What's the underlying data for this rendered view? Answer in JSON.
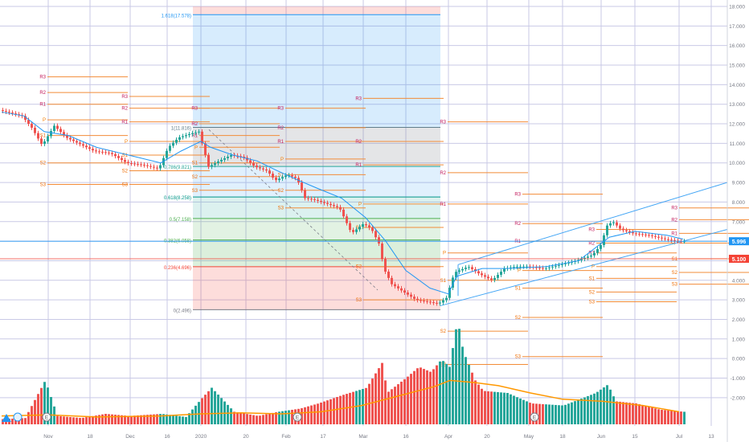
{
  "chart_data": {
    "type": "candlestick",
    "y_axis": {
      "min": -2.5,
      "max": 18,
      "tick_values": [
        18,
        17,
        16,
        15,
        14,
        13,
        12,
        11,
        10,
        9,
        8,
        7,
        6,
        5,
        4,
        3,
        2,
        1,
        0,
        -1,
        -2
      ],
      "tick_labels": [
        "18.000",
        "17.000",
        "16.000",
        "15.000",
        "14.000",
        "13.000",
        "12.000",
        "11.000",
        "10.000",
        "9.000",
        "8.000",
        "7.000",
        "6.000",
        "5.000",
        "4.000",
        "3.000",
        "2.000",
        "1.000",
        "0.000",
        "-1.000",
        "-2.000"
      ]
    },
    "x_axis": {
      "range": [
        0,
        890
      ],
      "tick_labels": [
        {
          "text": "Nov",
          "x": 60
        },
        {
          "text": "18",
          "x": 112
        },
        {
          "text": "Dec",
          "x": 162
        },
        {
          "text": "16",
          "x": 208
        },
        {
          "text": "2020",
          "x": 250
        },
        {
          "text": "20",
          "x": 306
        },
        {
          "text": "Feb",
          "x": 356
        },
        {
          "text": "17",
          "x": 402
        },
        {
          "text": "Mar",
          "x": 452
        },
        {
          "text": "16",
          "x": 505
        },
        {
          "text": "Apr",
          "x": 558
        },
        {
          "text": "20",
          "x": 606
        },
        {
          "text": "May",
          "x": 658
        },
        {
          "text": "18",
          "x": 700
        },
        {
          "text": "Jun",
          "x": 748
        },
        {
          "text": "15",
          "x": 790
        },
        {
          "text": "Jul",
          "x": 845
        },
        {
          "text": "13",
          "x": 885
        }
      ]
    },
    "price_markers": [
      {
        "value": 5.996,
        "label": "5.996",
        "color": "#2196f3"
      },
      {
        "value": 5.1,
        "label": "5.100",
        "color": "#f44336"
      }
    ],
    "candles_keypoints": [
      [
        2,
        12.7
      ],
      [
        30,
        12.4
      ],
      [
        42,
        11.8
      ],
      [
        55,
        10.9
      ],
      [
        70,
        11.9
      ],
      [
        85,
        11.3
      ],
      [
        100,
        11.0
      ],
      [
        120,
        10.6
      ],
      [
        140,
        10.5
      ],
      [
        160,
        10.0
      ],
      [
        180,
        9.9
      ],
      [
        200,
        9.7
      ],
      [
        212,
        10.8
      ],
      [
        225,
        11.3
      ],
      [
        240,
        11.5
      ],
      [
        250,
        11.6
      ],
      [
        262,
        9.8
      ],
      [
        275,
        10.1
      ],
      [
        290,
        10.4
      ],
      [
        305,
        10.3
      ],
      [
        320,
        9.8
      ],
      [
        335,
        9.6
      ],
      [
        345,
        9.1
      ],
      [
        360,
        9.4
      ],
      [
        372,
        9.2
      ],
      [
        382,
        8.2
      ],
      [
        395,
        8.1
      ],
      [
        410,
        7.9
      ],
      [
        425,
        7.7
      ],
      [
        440,
        6.4
      ],
      [
        455,
        6.9
      ],
      [
        465,
        6.6
      ],
      [
        475,
        5.8
      ],
      [
        480,
        4.6
      ],
      [
        490,
        3.8
      ],
      [
        505,
        3.4
      ],
      [
        520,
        3.0
      ],
      [
        535,
        2.9
      ],
      [
        548,
        2.8
      ],
      [
        558,
        3.1
      ],
      [
        568,
        4.4
      ],
      [
        585,
        4.7
      ],
      [
        600,
        4.3
      ],
      [
        615,
        4.0
      ],
      [
        630,
        4.6
      ],
      [
        645,
        4.7
      ],
      [
        660,
        4.7
      ],
      [
        680,
        4.6
      ],
      [
        700,
        4.8
      ],
      [
        720,
        5.0
      ],
      [
        740,
        5.3
      ],
      [
        750,
        5.8
      ],
      [
        758,
        6.8
      ],
      [
        765,
        7.0
      ],
      [
        775,
        6.6
      ],
      [
        790,
        6.4
      ],
      [
        810,
        6.3
      ],
      [
        830,
        6.1
      ],
      [
        845,
        6.0
      ],
      [
        850,
        5.996
      ]
    ],
    "ma_keypoints": [
      [
        2,
        12.6
      ],
      [
        30,
        12.4
      ],
      [
        55,
        11.6
      ],
      [
        85,
        11.4
      ],
      [
        120,
        10.8
      ],
      [
        160,
        10.4
      ],
      [
        200,
        10.0
      ],
      [
        225,
        10.6
      ],
      [
        250,
        11.1
      ],
      [
        262,
        10.8
      ],
      [
        290,
        10.4
      ],
      [
        320,
        10.1
      ],
      [
        345,
        9.6
      ],
      [
        372,
        9.1
      ],
      [
        395,
        8.7
      ],
      [
        425,
        8.2
      ],
      [
        455,
        7.2
      ],
      [
        480,
        6.0
      ],
      [
        505,
        4.5
      ],
      [
        535,
        3.6
      ],
      [
        558,
        3.3
      ],
      [
        568,
        4.2
      ],
      [
        600,
        4.6
      ],
      [
        630,
        4.6
      ],
      [
        680,
        4.7
      ],
      [
        720,
        5.0
      ],
      [
        758,
        6.2
      ],
      [
        790,
        6.5
      ],
      [
        830,
        6.3
      ],
      [
        850,
        6.1
      ]
    ],
    "volume_keypoints": [
      [
        2,
        0.05
      ],
      [
        30,
        0.06
      ],
      [
        55,
        0.42
      ],
      [
        70,
        0.08
      ],
      [
        100,
        0.06
      ],
      [
        130,
        0.1
      ],
      [
        160,
        0.08
      ],
      [
        200,
        0.1
      ],
      [
        230,
        0.07
      ],
      [
        250,
        0.25
      ],
      [
        262,
        0.35
      ],
      [
        290,
        0.12
      ],
      [
        320,
        0.08
      ],
      [
        345,
        0.12
      ],
      [
        372,
        0.15
      ],
      [
        395,
        0.2
      ],
      [
        425,
        0.28
      ],
      [
        455,
        0.35
      ],
      [
        475,
        0.6
      ],
      [
        480,
        0.3
      ],
      [
        505,
        0.45
      ],
      [
        520,
        0.55
      ],
      [
        535,
        0.5
      ],
      [
        548,
        0.62
      ],
      [
        558,
        0.55
      ],
      [
        568,
        1.0
      ],
      [
        575,
        0.7
      ],
      [
        590,
        0.42
      ],
      [
        600,
        0.32
      ],
      [
        630,
        0.3
      ],
      [
        660,
        0.2
      ],
      [
        700,
        0.18
      ],
      [
        740,
        0.3
      ],
      [
        755,
        0.38
      ],
      [
        765,
        0.22
      ],
      [
        790,
        0.2
      ],
      [
        820,
        0.14
      ],
      [
        850,
        0.12
      ]
    ],
    "volume_ma_keypoints": [
      [
        2,
        0.08
      ],
      [
        60,
        0.09
      ],
      [
        120,
        0.07
      ],
      [
        200,
        0.08
      ],
      [
        250,
        0.1
      ],
      [
        300,
        0.11
      ],
      [
        350,
        0.1
      ],
      [
        400,
        0.12
      ],
      [
        450,
        0.18
      ],
      [
        500,
        0.28
      ],
      [
        540,
        0.36
      ],
      [
        560,
        0.42
      ],
      [
        590,
        0.4
      ],
      [
        620,
        0.37
      ],
      [
        660,
        0.3
      ],
      [
        700,
        0.24
      ],
      [
        750,
        0.22
      ],
      [
        800,
        0.18
      ],
      [
        845,
        0.12
      ]
    ],
    "fib_retracement": {
      "x_range": [
        240,
        548
      ],
      "levels": [
        {
          "label": "1.618(17.578)",
          "value": 17.578,
          "color": "#2196f3"
        },
        {
          "label": "1(11.816)",
          "value": 11.816,
          "color": "#607d8b"
        },
        {
          "label": "0.786(9.821)",
          "value": 9.821,
          "color": "#26a69a"
        },
        {
          "label": "0.618(8.258)",
          "value": 8.258,
          "color": "#009688"
        },
        {
          "label": "0.5(7.158)",
          "value": 7.158,
          "color": "#4caf50"
        },
        {
          "label": "0.382(6.058)",
          "value": 6.058,
          "color": "#4caf50"
        },
        {
          "label": "0.236(4.696)",
          "value": 4.696,
          "color": "#f44336"
        },
        {
          "label": "0(2.496)",
          "value": 2.496,
          "color": "#787b86"
        }
      ]
    },
    "pivot_labels": [
      {
        "label": "R3",
        "x": 52,
        "value": 14.4
      },
      {
        "label": "R2",
        "x": 52,
        "value": 13.6
      },
      {
        "label": "R1",
        "x": 52,
        "value": 13.0
      },
      {
        "label": "P",
        "x": 52,
        "value": 12.2
      },
      {
        "label": "S1",
        "x": 52,
        "value": 11.4
      },
      {
        "label": "S2",
        "x": 52,
        "value": 10.0
      },
      {
        "label": "S3",
        "x": 52,
        "value": 8.9
      },
      {
        "label": "R3",
        "x": 154,
        "value": 13.4
      },
      {
        "label": "R2",
        "x": 154,
        "value": 12.8
      },
      {
        "label": "R1",
        "x": 154,
        "value": 12.1
      },
      {
        "label": "P",
        "x": 154,
        "value": 11.1
      },
      {
        "label": "S1",
        "x": 154,
        "value": 10.4
      },
      {
        "label": "S2",
        "x": 154,
        "value": 9.6
      },
      {
        "label": "S3",
        "x": 154,
        "value": 8.9
      },
      {
        "label": "R3",
        "x": 241,
        "value": 12.8
      },
      {
        "label": "R2",
        "x": 241,
        "value": 12.0
      },
      {
        "label": "R1",
        "x": 241,
        "value": 11.4
      },
      {
        "label": "P",
        "x": 241,
        "value": 10.8
      },
      {
        "label": "S1",
        "x": 241,
        "value": 10.0
      },
      {
        "label": "S2",
        "x": 241,
        "value": 9.3
      },
      {
        "label": "S3",
        "x": 241,
        "value": 8.6
      },
      {
        "label": "R3",
        "x": 348,
        "value": 12.8
      },
      {
        "label": "R2",
        "x": 348,
        "value": 11.8
      },
      {
        "label": "R1",
        "x": 348,
        "value": 11.1
      },
      {
        "label": "P",
        "x": 348,
        "value": 10.2
      },
      {
        "label": "S1",
        "x": 348,
        "value": 9.4
      },
      {
        "label": "S2",
        "x": 348,
        "value": 8.6
      },
      {
        "label": "S3",
        "x": 348,
        "value": 7.7
      },
      {
        "label": "R3",
        "x": 445,
        "value": 13.3
      },
      {
        "label": "R2",
        "x": 445,
        "value": 11.1
      },
      {
        "label": "R1",
        "x": 445,
        "value": 9.9
      },
      {
        "label": "P",
        "x": 445,
        "value": 7.9
      },
      {
        "label": "S1",
        "x": 445,
        "value": 6.7
      },
      {
        "label": "S2",
        "x": 445,
        "value": 4.7
      },
      {
        "label": "S3",
        "x": 445,
        "value": 3.0
      },
      {
        "label": "R3",
        "x": 550,
        "value": 12.1
      },
      {
        "label": "R2",
        "x": 550,
        "value": 9.5
      },
      {
        "label": "R1",
        "x": 550,
        "value": 7.9
      },
      {
        "label": "P",
        "x": 550,
        "value": 5.4
      },
      {
        "label": "S1",
        "x": 550,
        "value": 4.0
      },
      {
        "label": "S2",
        "x": 550,
        "value": 1.4
      },
      {
        "label": "S3",
        "x": 550,
        "value": -0.3
      },
      {
        "label": "R3",
        "x": 643,
        "value": 8.4
      },
      {
        "label": "R2",
        "x": 643,
        "value": 6.9
      },
      {
        "label": "R1",
        "x": 643,
        "value": 6.0
      },
      {
        "label": "P",
        "x": 643,
        "value": 4.5
      },
      {
        "label": "S1",
        "x": 643,
        "value": 3.6
      },
      {
        "label": "S2",
        "x": 643,
        "value": 2.1
      },
      {
        "label": "S3",
        "x": 643,
        "value": 0.1
      },
      {
        "label": "R3",
        "x": 735,
        "value": 6.6
      },
      {
        "label": "R2",
        "x": 735,
        "value": 5.9
      },
      {
        "label": "R1",
        "x": 735,
        "value": 5.4
      },
      {
        "label": "P",
        "x": 735,
        "value": 4.7
      },
      {
        "label": "S1",
        "x": 735,
        "value": 4.1
      },
      {
        "label": "S2",
        "x": 735,
        "value": 3.4
      },
      {
        "label": "S3",
        "x": 735,
        "value": 2.9
      },
      {
        "label": "R3",
        "x": 838,
        "value": 7.7
      },
      {
        "label": "R2",
        "x": 838,
        "value": 7.1
      },
      {
        "label": "R1",
        "x": 838,
        "value": 6.4
      },
      {
        "label": "P",
        "x": 838,
        "value": 5.9
      },
      {
        "label": "S1",
        "x": 838,
        "value": 5.1
      },
      {
        "label": "S2",
        "x": 838,
        "value": 4.4
      },
      {
        "label": "S3",
        "x": 838,
        "value": 3.8
      }
    ],
    "event_markers": [
      {
        "label": "E",
        "x": 58
      },
      {
        "label": "E",
        "x": 370
      },
      {
        "label": "E",
        "x": 665
      }
    ]
  }
}
